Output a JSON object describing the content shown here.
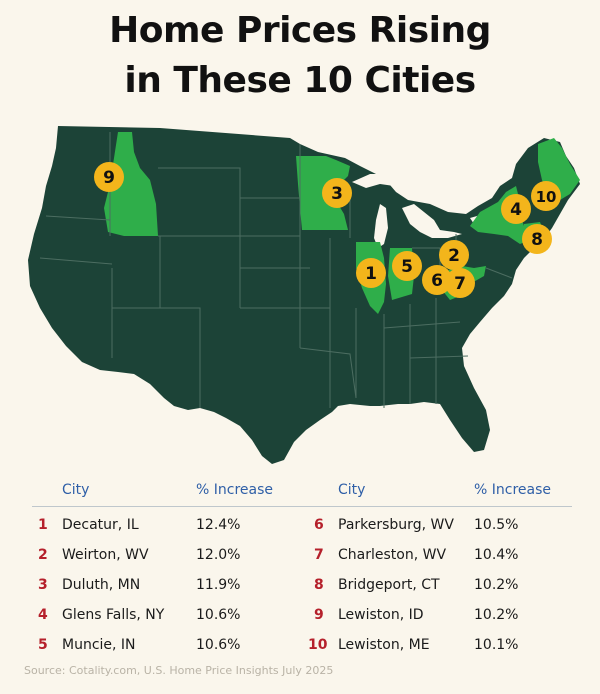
{
  "title_line1": "Home Prices Rising",
  "title_line2": "in These 10 Cities",
  "colors": {
    "background": "#faf6ec",
    "map_base": "#1c4337",
    "highlight_state": "#2fae4a",
    "marker": "#f3b51b",
    "header_text": "#2f5fa7",
    "rank_text": "#b5202b"
  },
  "table": {
    "headers": {
      "city_left": "City",
      "pct_left": "% Increase",
      "city_right": "City",
      "pct_right": "% Increase"
    },
    "left_rows": [
      {
        "rank": "1",
        "city": "Decatur, IL",
        "pct": "12.4%"
      },
      {
        "rank": "2",
        "city": "Weirton, WV",
        "pct": "12.0%"
      },
      {
        "rank": "3",
        "city": "Duluth, MN",
        "pct": "11.9%"
      },
      {
        "rank": "4",
        "city": "Glens Falls, NY",
        "pct": "10.6%"
      },
      {
        "rank": "5",
        "city": "Muncie, IN",
        "pct": "10.6%"
      }
    ],
    "right_rows": [
      {
        "rank": "6",
        "city": "Parkersburg, WV",
        "pct": "10.5%"
      },
      {
        "rank": "7",
        "city": "Charleston, WV",
        "pct": "10.4%"
      },
      {
        "rank": "8",
        "city": "Bridgeport, CT",
        "pct": "10.2%"
      },
      {
        "rank": "9",
        "city": "Lewiston, ID",
        "pct": "10.2%"
      },
      {
        "rank": "10",
        "city": "Lewiston, ME",
        "pct": "10.1%"
      }
    ]
  },
  "map": {
    "highlighted_states": [
      "Idaho",
      "Minnesota",
      "Illinois",
      "Indiana",
      "West Virginia",
      "New York",
      "Maine",
      "Connecticut"
    ],
    "markers": [
      "9",
      "3",
      "1",
      "5",
      "2",
      "6",
      "7",
      "4",
      "10",
      "8"
    ]
  },
  "source": "Source: Cotality.com, U.S. Home Price Insights July 2025"
}
